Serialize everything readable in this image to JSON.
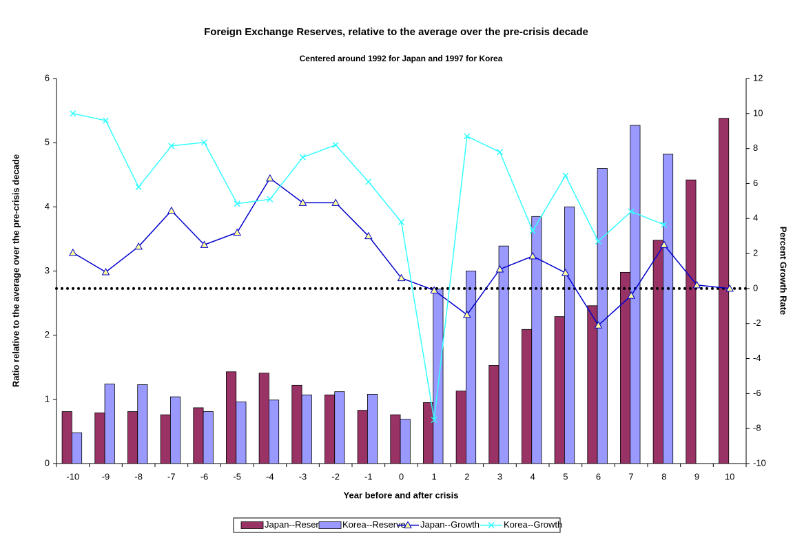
{
  "chart_data": {
    "type": "bar",
    "title": "Foreign Exchange Reserves, relative to the average over the pre-crisis decade",
    "subtitle": "Centered around 1992 for Japan and 1997 for Korea",
    "xlabel": "Year before and after crisis",
    "ylabel": "Ratio relative to the average over the pre-crisis decade",
    "y2label": "Percent Growth Rate",
    "categories": [
      "-10",
      "-9",
      "-8",
      "-7",
      "-6",
      "-5",
      "-4",
      "-3",
      "-2",
      "-1",
      "0",
      "1",
      "2",
      "3",
      "4",
      "5",
      "6",
      "7",
      "8",
      "9",
      "10"
    ],
    "ylim": [
      0,
      6
    ],
    "yticks": [
      0,
      1,
      2,
      3,
      4,
      5,
      6
    ],
    "y2lim": [
      -10,
      12
    ],
    "y2ticks": [
      -10,
      -8,
      -6,
      -4,
      -2,
      0,
      2,
      4,
      6,
      8,
      10,
      12
    ],
    "reference_line": {
      "axis": "y2",
      "value": 0
    },
    "legend": "bottom",
    "series": [
      {
        "name": "Japan--Reserves",
        "type": "bar",
        "color": "#993366",
        "values": [
          0.81,
          0.79,
          0.81,
          0.76,
          0.87,
          1.43,
          1.41,
          1.22,
          1.07,
          0.83,
          0.76,
          0.95,
          1.13,
          1.53,
          2.09,
          2.29,
          2.46,
          2.98,
          3.48,
          4.42,
          5.38
        ]
      },
      {
        "name": "Korea--Reserves",
        "type": "bar",
        "color": "#9999ff",
        "values": [
          0.48,
          1.24,
          1.23,
          1.04,
          0.81,
          0.96,
          0.99,
          1.07,
          1.12,
          1.08,
          0.69,
          2.72,
          3.0,
          3.39,
          3.85,
          4.0,
          4.6,
          5.27,
          4.82,
          null,
          null
        ]
      },
      {
        "name": "Japan--Growth",
        "type": "line",
        "axis": "y2",
        "color": "#0000cc",
        "marker": "triangle",
        "values": [
          2.05,
          0.94,
          2.4,
          4.45,
          2.5,
          3.2,
          6.3,
          4.9,
          4.9,
          3.0,
          0.6,
          -0.1,
          -1.5,
          1.1,
          1.85,
          0.9,
          -2.1,
          -0.4,
          2.5,
          0.2,
          0
        ]
      },
      {
        "name": "Korea--Growth",
        "type": "line",
        "axis": "y2",
        "color": "#33ffff",
        "marker": "x",
        "values": [
          10.0,
          9.6,
          5.8,
          8.15,
          8.35,
          4.85,
          5.1,
          7.5,
          8.2,
          6.1,
          3.8,
          -7.5,
          8.7,
          7.8,
          3.3,
          6.45,
          2.7,
          4.4,
          3.65,
          null,
          null
        ]
      }
    ]
  }
}
